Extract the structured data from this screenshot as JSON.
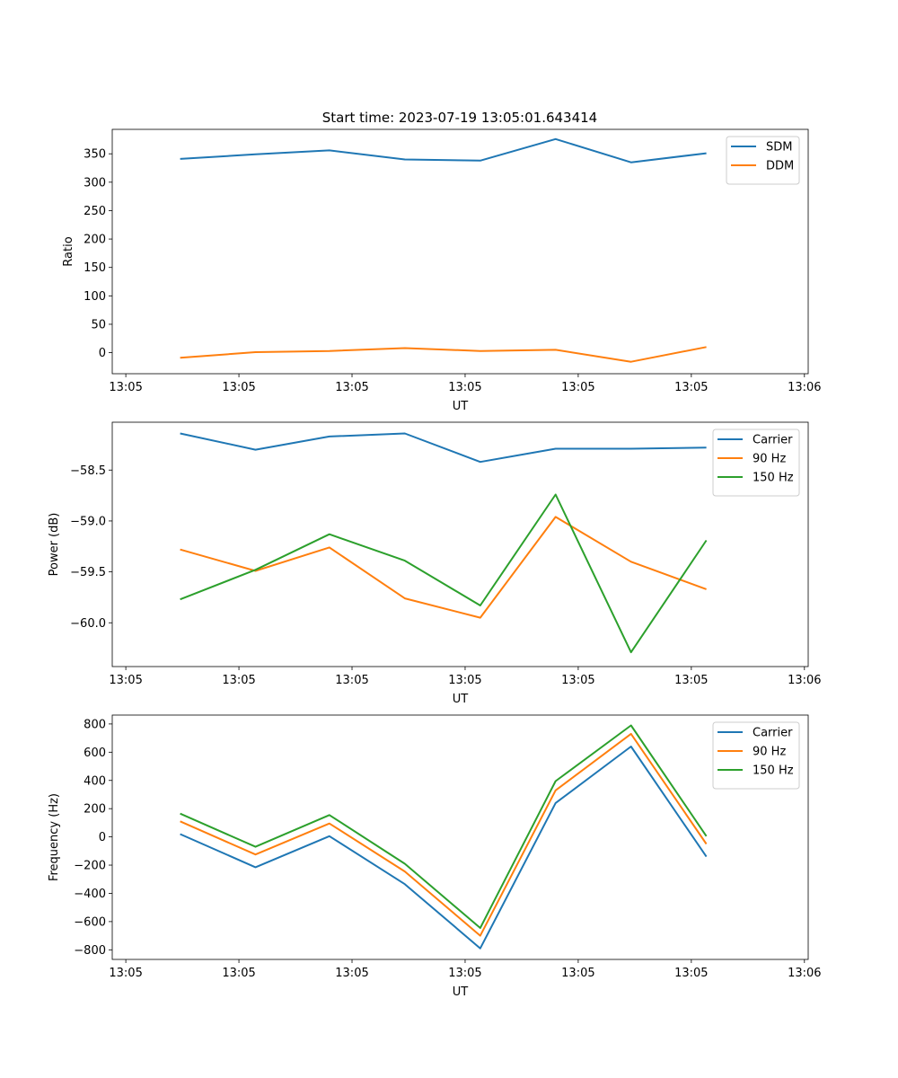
{
  "figure_title": "Start time: 2023-07-19 13:05:01.643414",
  "chart_data": [
    {
      "type": "line",
      "title": "Start time: 2023-07-19 13:05:01.643414",
      "xlabel": "UT",
      "ylabel": "Ratio",
      "xlim": [
        -0.18,
        9.05
      ],
      "ylim": [
        -37,
        393
      ],
      "xticks": [
        0,
        1.5,
        3,
        4.5,
        6,
        7.5,
        9
      ],
      "xtick_labels": [
        "13:05",
        "13:05",
        "13:05",
        "13:05",
        "13:05",
        "13:05",
        "13:06"
      ],
      "yticks": [
        0,
        50,
        100,
        150,
        200,
        250,
        300,
        350
      ],
      "ytick_labels": [
        "0",
        "50",
        "100",
        "150",
        "200",
        "250",
        "300",
        "350"
      ],
      "legend_position": "top-right",
      "x": [
        0.72,
        1.72,
        2.7,
        3.7,
        4.7,
        5.7,
        6.7,
        7.7
      ],
      "series": [
        {
          "name": "SDM",
          "color": "#1f77b4",
          "values": [
            341,
            349,
            356,
            340,
            338,
            376,
            335,
            351
          ]
        },
        {
          "name": "DDM",
          "color": "#ff7f0e",
          "values": [
            -9,
            1,
            3,
            8,
            3,
            5,
            -16,
            10
          ]
        }
      ]
    },
    {
      "type": "line",
      "title": "",
      "xlabel": "UT",
      "ylabel": "Power (dB)",
      "xlim": [
        -0.18,
        9.05
      ],
      "ylim": [
        -60.43,
        -58.03
      ],
      "xticks": [
        0,
        1.5,
        3,
        4.5,
        6,
        7.5,
        9
      ],
      "xtick_labels": [
        "13:05",
        "13:05",
        "13:05",
        "13:05",
        "13:05",
        "13:05",
        "13:06"
      ],
      "yticks": [
        -60.0,
        -59.5,
        -59.0,
        -58.5
      ],
      "ytick_labels": [
        "−60.0",
        "−59.5",
        "−59.0",
        "−58.5"
      ],
      "legend_position": "top-right",
      "x": [
        0.72,
        1.72,
        2.7,
        3.7,
        4.7,
        5.7,
        6.7,
        7.7
      ],
      "series": [
        {
          "name": "Carrier",
          "color": "#1f77b4",
          "values": [
            -58.14,
            -58.3,
            -58.17,
            -58.14,
            -58.42,
            -58.29,
            -58.29,
            -58.28
          ]
        },
        {
          "name": "90 Hz",
          "color": "#ff7f0e",
          "values": [
            -59.28,
            -59.49,
            -59.26,
            -59.76,
            -59.95,
            -58.96,
            -59.4,
            -59.67
          ]
        },
        {
          "name": "150 Hz",
          "color": "#2ca02c",
          "values": [
            -59.77,
            -59.48,
            -59.13,
            -59.39,
            -59.83,
            -58.74,
            -60.29,
            -59.19
          ]
        }
      ]
    },
    {
      "type": "line",
      "title": "",
      "xlabel": "UT",
      "ylabel": "Frequency (Hz)",
      "xlim": [
        -0.18,
        9.05
      ],
      "ylim": [
        -868,
        863
      ],
      "xticks": [
        0,
        1.5,
        3,
        4.5,
        6,
        7.5,
        9
      ],
      "xtick_labels": [
        "13:05",
        "13:05",
        "13:05",
        "13:05",
        "13:05",
        "13:05",
        "13:06"
      ],
      "yticks": [
        -800,
        -600,
        -400,
        -200,
        0,
        200,
        400,
        600,
        800
      ],
      "ytick_labels": [
        "−800",
        "−600",
        "−400",
        "−200",
        "0",
        "200",
        "400",
        "600",
        "800"
      ],
      "legend_position": "top-right",
      "x": [
        0.72,
        1.72,
        2.7,
        3.7,
        4.7,
        5.7,
        6.7,
        7.7
      ],
      "series": [
        {
          "name": "Carrier",
          "color": "#1f77b4",
          "values": [
            20,
            -215,
            5,
            -335,
            -790,
            240,
            640,
            -140
          ]
        },
        {
          "name": "90 Hz",
          "color": "#ff7f0e",
          "values": [
            110,
            -125,
            95,
            -245,
            -700,
            330,
            730,
            -50
          ]
        },
        {
          "name": "150 Hz",
          "color": "#2ca02c",
          "values": [
            165,
            -70,
            155,
            -190,
            -645,
            395,
            790,
            5
          ]
        }
      ]
    }
  ]
}
